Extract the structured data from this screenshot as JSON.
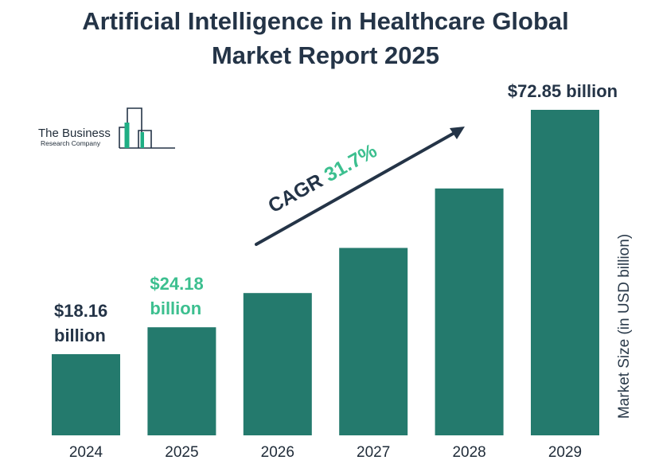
{
  "chart_data": {
    "type": "bar",
    "title_line1": "Artificial Intelligence in Healthcare Global",
    "title_line2": "Market Report 2025",
    "categories": [
      "2024",
      "2025",
      "2026",
      "2027",
      "2028",
      "2029"
    ],
    "values": [
      18.16,
      24.18,
      31.85,
      41.95,
      55.26,
      72.85
    ],
    "ylabel": "Market Size (in USD billion)",
    "xlabel": "",
    "ylim": [
      0,
      80
    ],
    "grid": false,
    "legend": "none",
    "value_labels": [
      {
        "category": "2024",
        "lines": [
          "$18.16",
          "billion"
        ],
        "color": "#243447"
      },
      {
        "category": "2025",
        "lines": [
          "$24.18",
          "billion"
        ],
        "color": "#3cbf8f"
      },
      {
        "category": "2029",
        "lines": [
          "$72.85 billion"
        ],
        "color": "#243447"
      }
    ],
    "annotation": {
      "prefix": "CAGR ",
      "value": "31.7%",
      "prefix_color": "#243447",
      "value_color": "#3cbf8f"
    },
    "bar_color": "#247a6d"
  },
  "logo": {
    "line1": "The Business",
    "line2": "Research Company",
    "accent_color": "#1fae84",
    "outline_color": "#243447"
  }
}
